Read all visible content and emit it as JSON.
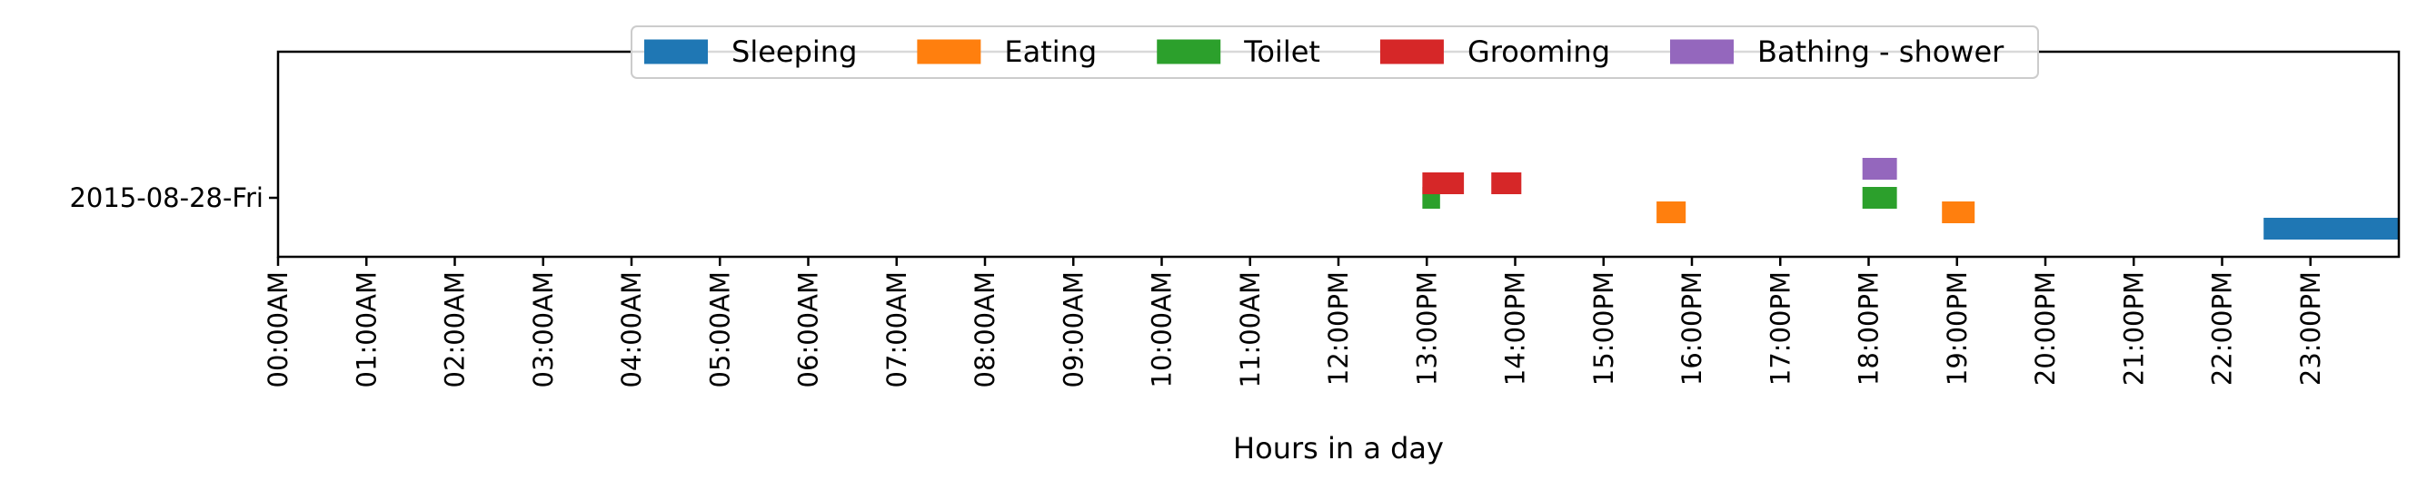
{
  "chart_data": {
    "type": "timeline",
    "xlabel": "Hours in a day",
    "ylabel": "",
    "x_unit": "hours",
    "xlim": [
      0,
      24
    ],
    "x_ticks": [
      {
        "value": 0,
        "label": "00:00AM"
      },
      {
        "value": 1,
        "label": "01:00AM"
      },
      {
        "value": 2,
        "label": "02:00AM"
      },
      {
        "value": 3,
        "label": "03:00AM"
      },
      {
        "value": 4,
        "label": "04:00AM"
      },
      {
        "value": 5,
        "label": "05:00AM"
      },
      {
        "value": 6,
        "label": "06:00AM"
      },
      {
        "value": 7,
        "label": "07:00AM"
      },
      {
        "value": 8,
        "label": "08:00AM"
      },
      {
        "value": 9,
        "label": "09:00AM"
      },
      {
        "value": 10,
        "label": "10:00AM"
      },
      {
        "value": 11,
        "label": "11:00AM"
      },
      {
        "value": 12,
        "label": "12:00PM"
      },
      {
        "value": 13,
        "label": "13:00PM"
      },
      {
        "value": 14,
        "label": "14:00PM"
      },
      {
        "value": 15,
        "label": "15:00PM"
      },
      {
        "value": 16,
        "label": "16:00PM"
      },
      {
        "value": 17,
        "label": "17:00PM"
      },
      {
        "value": 18,
        "label": "18:00PM"
      },
      {
        "value": 19,
        "label": "19:00PM"
      },
      {
        "value": 20,
        "label": "20:00PM"
      },
      {
        "value": 21,
        "label": "21:00PM"
      },
      {
        "value": 22,
        "label": "22:00PM"
      },
      {
        "value": 23,
        "label": "23:00PM"
      }
    ],
    "y_categories": [
      "2015-08-28-Fri"
    ],
    "legend_position": "top-center",
    "grid": false,
    "series": [
      {
        "name": "Sleeping",
        "color": "#1f77b4",
        "intervals": [
          {
            "start": 22.47,
            "end": 24.0
          }
        ]
      },
      {
        "name": "Eating",
        "color": "#ff7f0e",
        "intervals": [
          {
            "start": 15.6,
            "end": 15.93
          },
          {
            "start": 18.83,
            "end": 19.2
          }
        ]
      },
      {
        "name": "Toilet",
        "color": "#2ca02c",
        "intervals": [
          {
            "start": 12.95,
            "end": 13.15
          },
          {
            "start": 17.93,
            "end": 18.32
          }
        ]
      },
      {
        "name": "Grooming",
        "color": "#d62728",
        "intervals": [
          {
            "start": 12.95,
            "end": 13.42
          },
          {
            "start": 13.73,
            "end": 14.07
          }
        ]
      },
      {
        "name": "Bathing - shower",
        "color": "#9467bd",
        "intervals": [
          {
            "start": 17.93,
            "end": 18.32
          }
        ]
      }
    ]
  }
}
